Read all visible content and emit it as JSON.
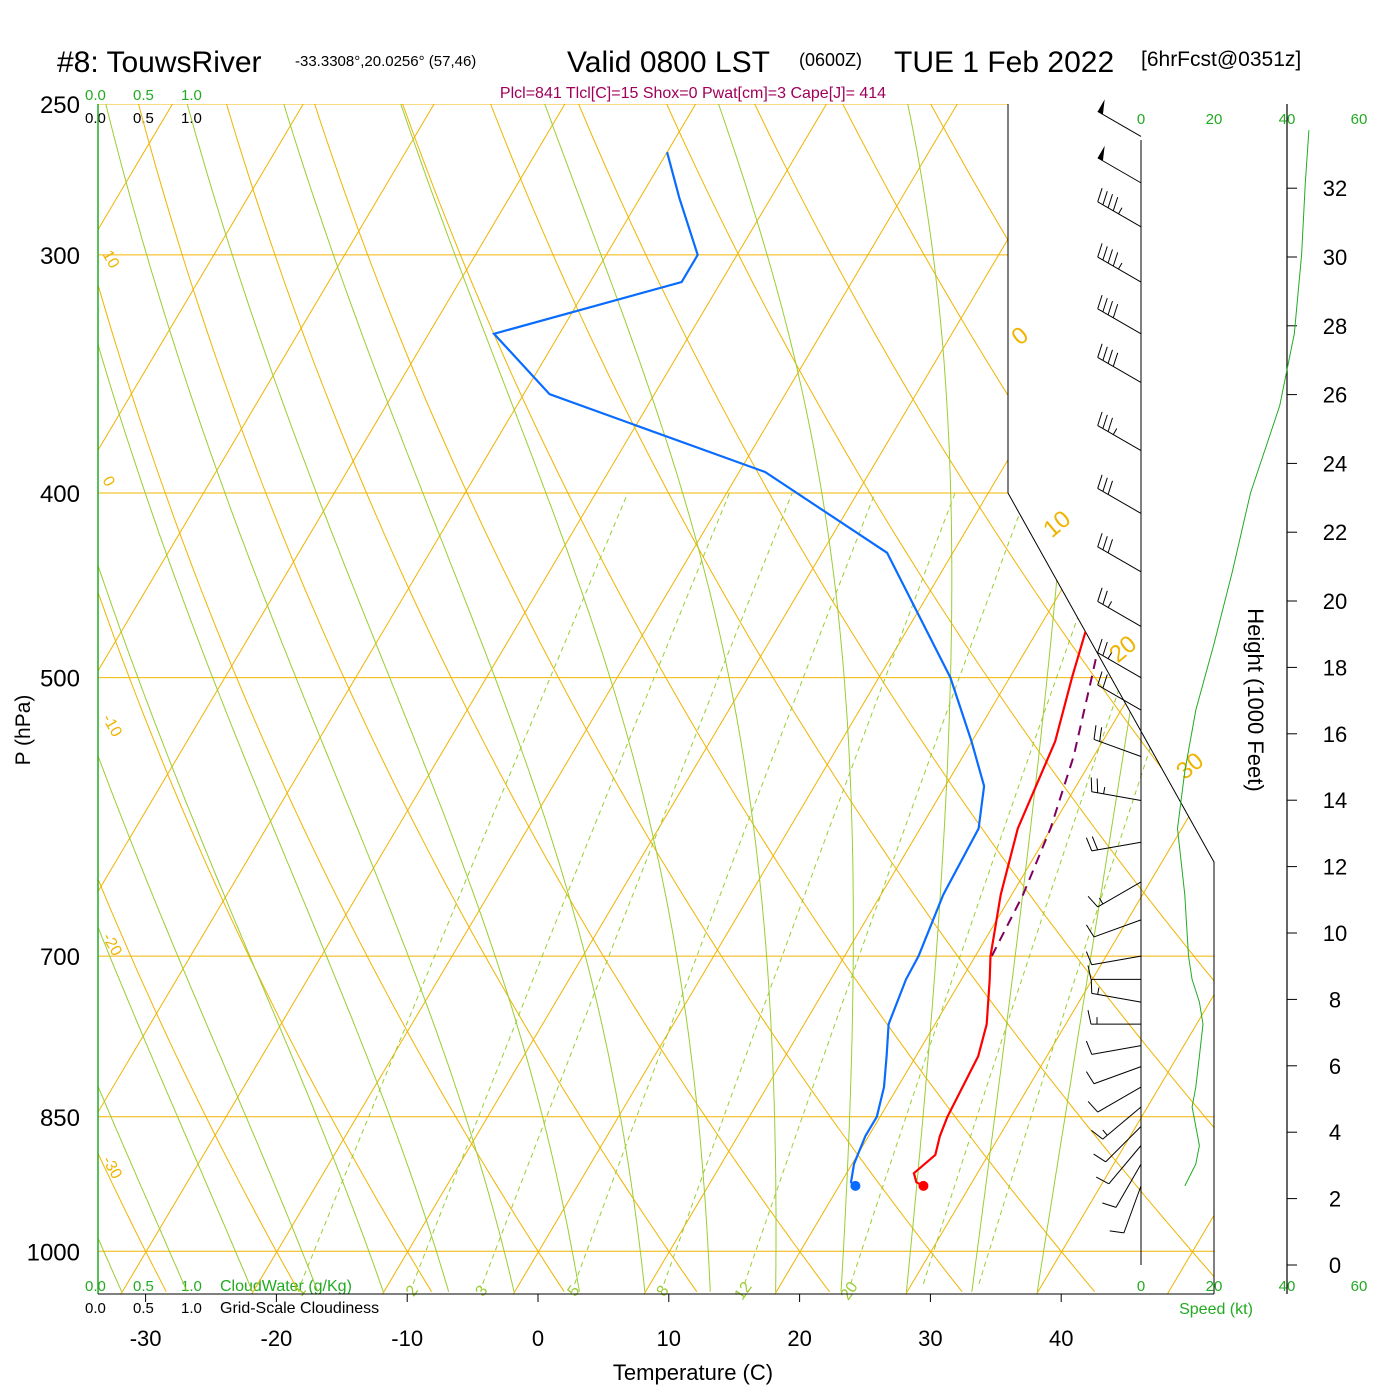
{
  "title": {
    "station": "#8: TouwsRiver",
    "coords": "-33.3308°,20.0256° (57,46)",
    "valid": "Valid 0800 LST",
    "zulu": "(0600Z)",
    "date": "TUE 1 Feb 2022",
    "fcst": "[6hrFcst@0351z]"
  },
  "params_line": "Plcl=841 Tlcl[C]=15 Shox=0 Pwat[cm]=3 Cape[J]= 414",
  "colors": {
    "isobar": "#f0b400",
    "dry_adiabat": "#9acd32",
    "moist_adiabat": "#9acd32",
    "mixing_ratio": "#9acd32",
    "temperature": "#ff0000",
    "dewpoint": "#0a6cff",
    "parcel": "#800060",
    "params": "#a0005a",
    "green_text": "#22aa22",
    "wind": "#000000"
  },
  "scales": {
    "cloudwater_top": [
      "0.0",
      "0.5",
      "1.0"
    ],
    "cloudiness_top": [
      "0.0",
      "0.5",
      "1.0"
    ],
    "cloudwater_bottom": [
      "0.0",
      "0.5",
      "1.0"
    ],
    "cloudiness_bottom": [
      "0.0",
      "0.5",
      "1.0"
    ],
    "cloudwater_label": "CloudWater (g/Kg)",
    "cloudiness_label": "Grid-Scale Cloudiness",
    "speed_ticks_top": [
      "0",
      "20",
      "40",
      "60"
    ],
    "speed_ticks_bottom": [
      "0",
      "20",
      "40",
      "60"
    ],
    "speed_label": "Speed (kt)"
  },
  "chart_data": {
    "type": "skew-t",
    "xlabel": "Temperature (C)",
    "ylabel": "P (hPa)",
    "y2label": "Height (1000 Feet)",
    "pressure_ticks": [
      250,
      300,
      400,
      500,
      700,
      850,
      1000
    ],
    "temperature_ticks": [
      -30,
      -20,
      -10,
      0,
      10,
      20,
      30,
      40
    ],
    "height_ticks": [
      0,
      2,
      4,
      6,
      8,
      10,
      12,
      14,
      16,
      18,
      20,
      22,
      24,
      26,
      28,
      30,
      32
    ],
    "isotherm_labels": [
      "10",
      "0",
      "-10",
      "-20",
      "-30",
      "0",
      "10",
      "20",
      "30"
    ],
    "mixing_ratio_labels": [
      "1",
      "2",
      "3",
      "5",
      "8",
      "12",
      "20"
    ],
    "temperature_profile": [
      [
        924,
        26.5
      ],
      [
        920,
        25.8
      ],
      [
        910,
        25.2
      ],
      [
        890,
        26.0
      ],
      [
        870,
        25.5
      ],
      [
        850,
        25.2
      ],
      [
        820,
        25.0
      ],
      [
        790,
        24.8
      ],
      [
        760,
        24.0
      ],
      [
        720,
        22.2
      ],
      [
        700,
        21.2
      ],
      [
        650,
        19.2
      ],
      [
        600,
        17.5
      ],
      [
        540,
        16.4
      ],
      [
        500,
        14.8
      ],
      [
        450,
        12.8
      ],
      [
        400,
        10.8
      ],
      [
        350,
        8.5
      ],
      [
        320,
        6.8
      ],
      [
        300,
        5.4
      ],
      [
        265,
        2.0
      ]
    ],
    "dewpoint_profile": [
      [
        924,
        21.3
      ],
      [
        920,
        20.8
      ],
      [
        900,
        20.2
      ],
      [
        870,
        19.8
      ],
      [
        850,
        19.8
      ],
      [
        820,
        19.0
      ],
      [
        790,
        17.8
      ],
      [
        760,
        16.5
      ],
      [
        720,
        15.8
      ],
      [
        700,
        15.7
      ],
      [
        650,
        14.8
      ],
      [
        600,
        14.5
      ],
      [
        570,
        13.0
      ],
      [
        540,
        10.0
      ],
      [
        500,
        5.5
      ],
      [
        430,
        -5.0
      ],
      [
        390,
        -18.0
      ],
      [
        355,
        -38.0
      ],
      [
        330,
        -45.0
      ],
      [
        310,
        -33.0
      ],
      [
        300,
        -33.0
      ],
      [
        280,
        -37.0
      ],
      [
        265,
        -40.0
      ]
    ],
    "parcel_profile": [
      [
        700,
        21.3
      ],
      [
        650,
        20.9
      ],
      [
        600,
        20.0
      ],
      [
        550,
        18.5
      ],
      [
        500,
        16.3
      ],
      [
        450,
        13.8
      ],
      [
        400,
        10.5
      ],
      [
        350,
        6.0
      ],
      [
        310,
        2.3
      ]
    ],
    "surface_temperature": [
      924,
      26.5
    ],
    "surface_dewpoint": [
      924,
      21.3
    ],
    "wind_barbs": [
      [
        924,
        200,
        10
      ],
      [
        900,
        210,
        12
      ],
      [
        880,
        220,
        12
      ],
      [
        860,
        225,
        14
      ],
      [
        840,
        230,
        15
      ],
      [
        820,
        240,
        12
      ],
      [
        800,
        250,
        12
      ],
      [
        780,
        260,
        14
      ],
      [
        760,
        270,
        15
      ],
      [
        740,
        280,
        16
      ],
      [
        720,
        270,
        14
      ],
      [
        700,
        260,
        12
      ],
      [
        670,
        250,
        12
      ],
      [
        640,
        240,
        15
      ],
      [
        610,
        260,
        20
      ],
      [
        580,
        280,
        25
      ],
      [
        550,
        290,
        20
      ],
      [
        520,
        300,
        22
      ],
      [
        500,
        300,
        25
      ],
      [
        470,
        300,
        28
      ],
      [
        440,
        300,
        30
      ],
      [
        410,
        300,
        32
      ],
      [
        380,
        300,
        35
      ],
      [
        350,
        300,
        40
      ],
      [
        330,
        300,
        42
      ],
      [
        310,
        300,
        45
      ],
      [
        290,
        300,
        48
      ],
      [
        275,
        300,
        50
      ],
      [
        260,
        300,
        52
      ]
    ],
    "speed_profile": [
      [
        924,
        12
      ],
      [
        900,
        15
      ],
      [
        880,
        16
      ],
      [
        860,
        15
      ],
      [
        840,
        14
      ],
      [
        820,
        15
      ],
      [
        790,
        16
      ],
      [
        760,
        17
      ],
      [
        740,
        16
      ],
      [
        720,
        14
      ],
      [
        700,
        13
      ],
      [
        650,
        12
      ],
      [
        600,
        10
      ],
      [
        560,
        12
      ],
      [
        520,
        15
      ],
      [
        480,
        20
      ],
      [
        440,
        25
      ],
      [
        400,
        30
      ],
      [
        360,
        38
      ],
      [
        330,
        42
      ],
      [
        300,
        44
      ],
      [
        275,
        45
      ],
      [
        258,
        46
      ]
    ]
  }
}
